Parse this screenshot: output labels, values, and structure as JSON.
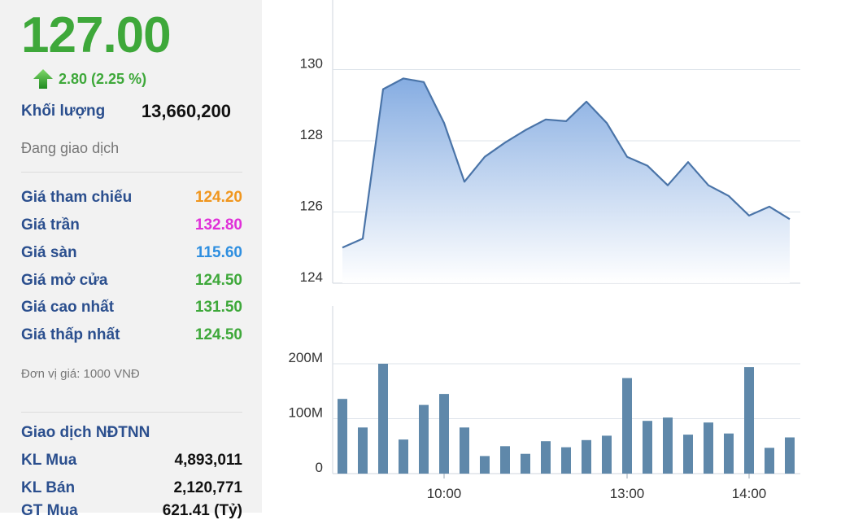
{
  "price": "127.00",
  "change": "2.80 (2.25 %)",
  "volume": {
    "label": "Khối lượng",
    "value": "13,660,200"
  },
  "status": "Đang giao dịch",
  "prices": [
    {
      "label": "Giá tham chiếu",
      "value": "124.20",
      "color": "#f0961e"
    },
    {
      "label": "Giá trần",
      "value": "132.80",
      "color": "#e030d8"
    },
    {
      "label": "Giá sàn",
      "value": "115.60",
      "color": "#2f8fe0"
    },
    {
      "label": "Giá mở cửa",
      "value": "124.50",
      "color": "#3ea83a"
    },
    {
      "label": "Giá cao nhất",
      "value": "131.50",
      "color": "#3ea83a"
    },
    {
      "label": "Giá thấp nhất",
      "value": "124.50",
      "color": "#3ea83a"
    }
  ],
  "unit_note": "Đơn vị giá: 1000 VNĐ",
  "foreign": {
    "title": "Giao dịch NĐTNN",
    "rows": [
      {
        "label": "KL Mua",
        "value": "4,893,011"
      },
      {
        "label": "KL Bán",
        "value": "2,120,771"
      },
      {
        "label": "GT Mua",
        "value": "621.41 (Tỷ)"
      }
    ]
  },
  "colors": {
    "up": "#3ea83a",
    "label": "#2b4f8e",
    "line": "#4a74a8",
    "bar": "#5f88aa"
  },
  "chart_data": [
    {
      "type": "area",
      "ylim": [
        124,
        131
      ],
      "y_ticks": [
        "124",
        "126",
        "128",
        "130"
      ],
      "x_ticks": [
        "10:00",
        "13:00",
        "14:00"
      ],
      "x_tick_index": [
        5,
        14,
        20
      ],
      "values": [
        125.0,
        125.25,
        129.45,
        129.75,
        129.65,
        128.5,
        126.85,
        127.55,
        127.95,
        128.3,
        128.6,
        128.55,
        129.1,
        128.5,
        127.55,
        127.3,
        126.75,
        127.4,
        126.75,
        126.45,
        125.9,
        126.15,
        125.8
      ]
    },
    {
      "type": "bar",
      "ylim": [
        0,
        210000000
      ],
      "y_ticks": [
        "0",
        "100M",
        "200M"
      ],
      "x_ticks": [
        "10:00",
        "13:00",
        "14:00"
      ],
      "values": [
        136000000,
        84000000,
        200000000,
        62000000,
        125000000,
        145000000,
        84000000,
        32000000,
        50000000,
        36000000,
        59000000,
        48000000,
        61000000,
        69000000,
        174000000,
        96000000,
        102000000,
        71000000,
        93000000,
        73000000,
        194000000,
        47000000,
        66000000
      ]
    }
  ]
}
